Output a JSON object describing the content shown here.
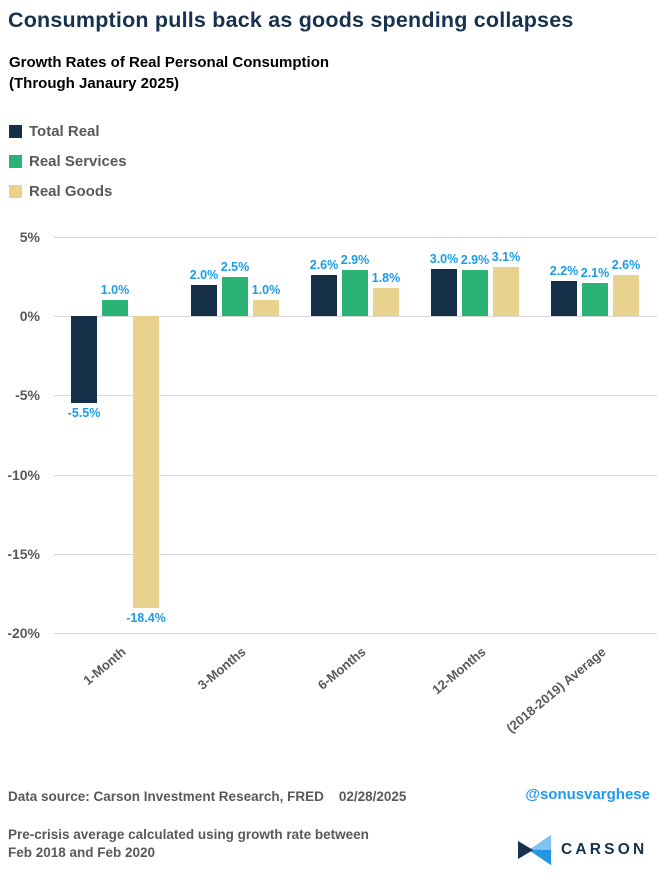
{
  "header": {
    "title": "Consumption pulls back as goods spending collapses",
    "subtitle_line1": "Growth Rates of Real Personal Consumption",
    "subtitle_line2": "(Through Janaury 2025)"
  },
  "legend": [
    {
      "label": "Total Real",
      "color": "#142f47"
    },
    {
      "label": "Real Services",
      "color": "#2bb275"
    },
    {
      "label": "Real Goods",
      "color": "#e9d28d"
    }
  ],
  "chart_data": {
    "type": "bar",
    "title": "Growth Rates of Real Personal Consumption (Through Janaury 2025)",
    "categories": [
      "1-Month",
      "3-Months",
      "6-Months",
      "12-Months",
      "(2018-2019) Average"
    ],
    "series": [
      {
        "name": "Total Real",
        "color": "#142f47",
        "values": [
          -5.5,
          2.0,
          2.6,
          3.0,
          2.2
        ]
      },
      {
        "name": "Real Services",
        "color": "#2bb275",
        "values": [
          1.0,
          2.5,
          2.9,
          2.9,
          2.1
        ]
      },
      {
        "name": "Real Goods",
        "color": "#e9d28d",
        "values": [
          -18.4,
          1.0,
          1.8,
          3.1,
          2.6
        ]
      }
    ],
    "ylim": [
      -20,
      5
    ],
    "yticks": [
      5,
      0,
      -5,
      -10,
      -15,
      -20
    ],
    "ytick_labels": [
      "5%",
      "0%",
      "-5%",
      "-10%",
      "-15%",
      "-20%"
    ],
    "data_labels": true,
    "data_label_color": "#1b9ce3",
    "gridline_color": "#d9d9d9",
    "axis_text_color": "#595959",
    "grid": true,
    "legend_position": "top-left"
  },
  "footer": {
    "data_source": "Data source: Carson Investment Research, FRED",
    "date": "02/28/2025",
    "handle": "@sonusvarghese",
    "handle_color": "#1e9bf0",
    "note_line1": "Pre-crisis average calculated using growth rate between",
    "note_line2": "Feb 2018 and Feb 2020",
    "brand": "CARSON",
    "brand_colors": {
      "navy": "#16324f",
      "light_blue": "#7fc3f0",
      "mid_blue": "#2497e3"
    }
  }
}
